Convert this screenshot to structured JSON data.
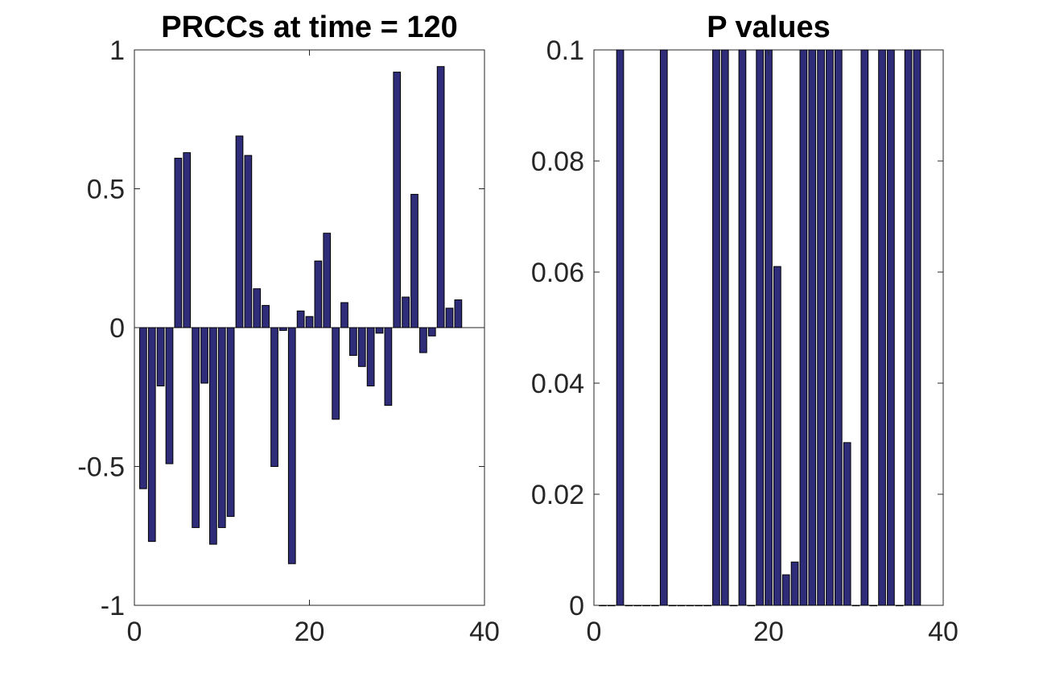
{
  "chart_data": [
    {
      "type": "bar",
      "title": "PRCCs at time = 120",
      "xlabel": "",
      "ylabel": "",
      "xlim": [
        0,
        40
      ],
      "ylim": [
        -1,
        1
      ],
      "xticks": [
        "0",
        "20",
        "40"
      ],
      "yticks": [
        "-1",
        "-0.5",
        "0",
        "0.5",
        "1"
      ],
      "grid": false,
      "bar_color": "#2f2c7a",
      "x": [
        1,
        2,
        3,
        4,
        5,
        6,
        7,
        8,
        9,
        10,
        11,
        12,
        13,
        14,
        15,
        16,
        17,
        18,
        19,
        20,
        21,
        22,
        23,
        24,
        25,
        26,
        27,
        28,
        29,
        30,
        31,
        32,
        33,
        34,
        35,
        36,
        37
      ],
      "values": [
        -0.58,
        -0.77,
        -0.21,
        -0.49,
        0.61,
        0.63,
        -0.72,
        -0.2,
        -0.78,
        -0.72,
        -0.68,
        0.69,
        0.62,
        0.14,
        0.08,
        -0.5,
        -0.01,
        -0.85,
        0.06,
        0.04,
        0.24,
        0.34,
        -0.33,
        0.09,
        -0.1,
        -0.14,
        -0.21,
        -0.02,
        -0.28,
        0.92,
        0.11,
        0.48,
        -0.09,
        -0.03,
        0.94,
        0.07,
        0.1
      ]
    },
    {
      "type": "bar",
      "title": "P values",
      "xlabel": "",
      "ylabel": "",
      "xlim": [
        0,
        40
      ],
      "ylim": [
        0,
        0.1
      ],
      "xticks": [
        "0",
        "20",
        "40"
      ],
      "yticks": [
        "0",
        "0.02",
        "0.04",
        "0.06",
        "0.08",
        "0.1"
      ],
      "grid": false,
      "bar_color": "#2f2c7a",
      "x": [
        1,
        2,
        3,
        4,
        5,
        6,
        7,
        8,
        9,
        10,
        11,
        12,
        13,
        14,
        15,
        16,
        17,
        18,
        19,
        20,
        21,
        22,
        23,
        24,
        25,
        26,
        27,
        28,
        29,
        30,
        31,
        32,
        33,
        34,
        35,
        36,
        37
      ],
      "values": [
        0,
        0,
        0.1,
        0,
        0,
        0,
        0,
        0.1,
        0,
        0,
        0,
        0,
        0,
        0.1,
        0.1,
        0,
        0.1,
        0,
        0.1,
        0.1,
        0.061,
        0.0055,
        0.0078,
        0.1,
        0.1,
        0.1,
        0.1,
        0.1,
        0.0293,
        0,
        0.1,
        0,
        0.1,
        0.1,
        0,
        0.1,
        0.1
      ]
    }
  ]
}
